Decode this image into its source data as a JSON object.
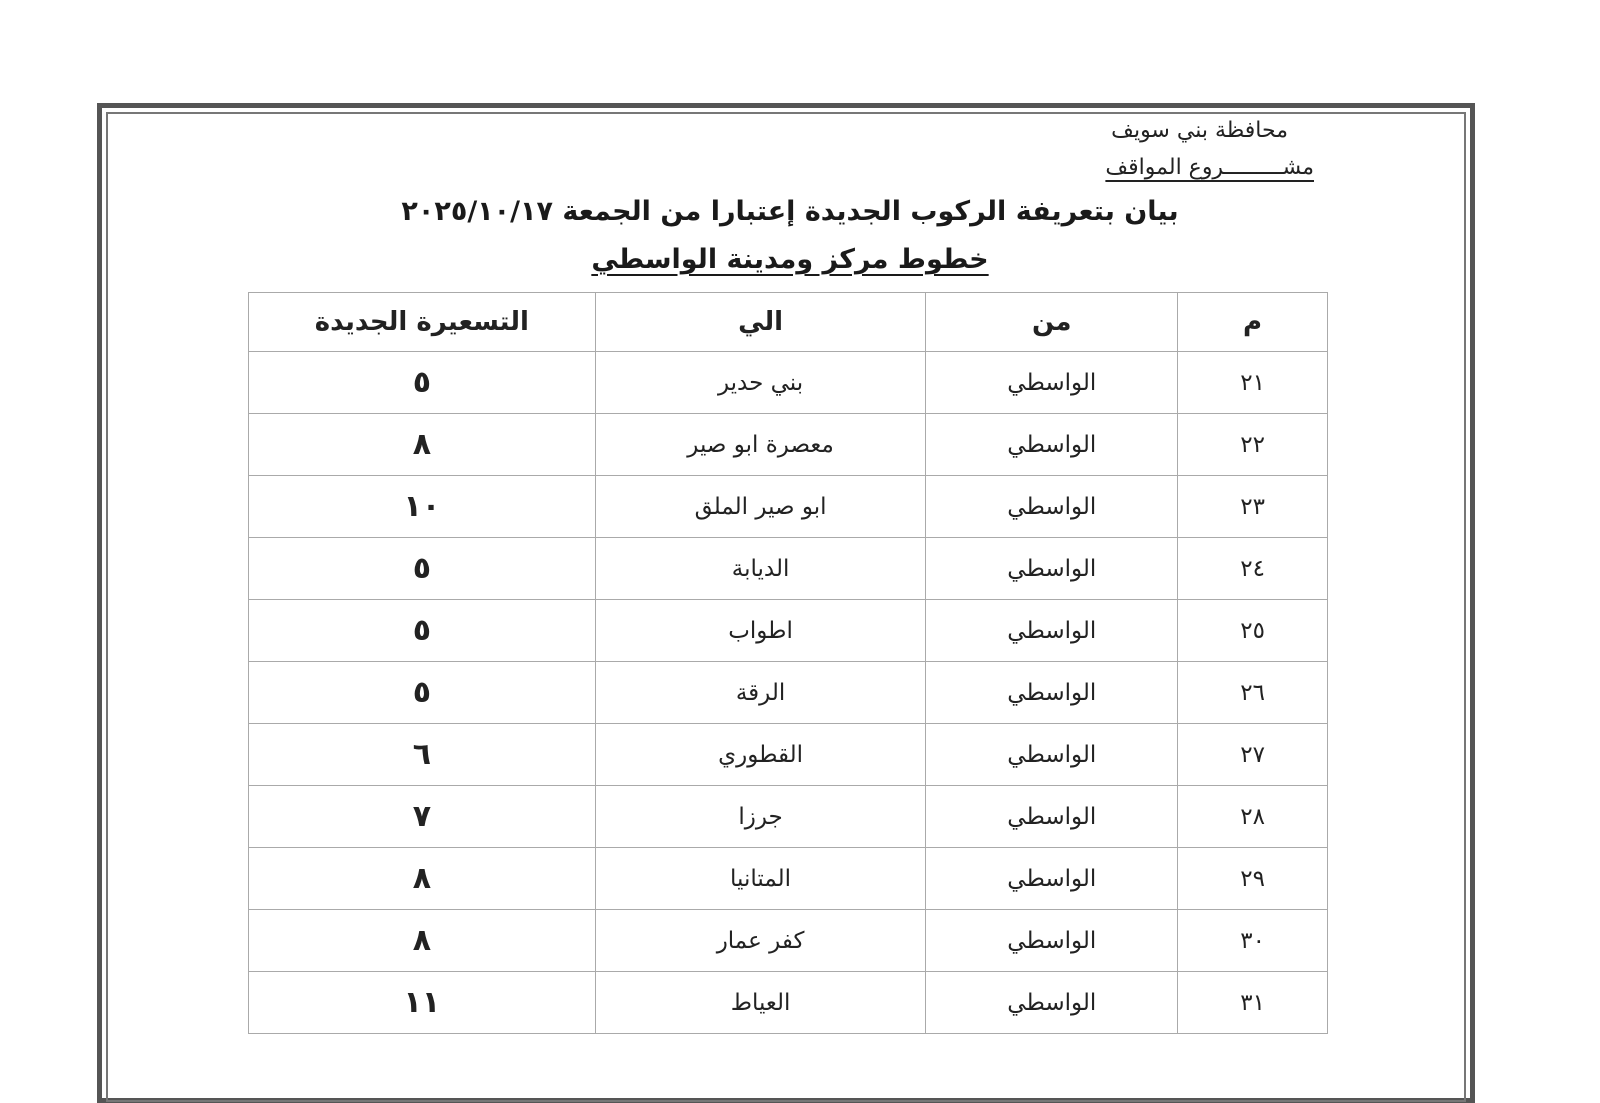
{
  "document": {
    "governorate": "محافظة بني سويف",
    "project": "مشـــــــــروع المواقف",
    "title": "بيان بتعريفة الركوب الجديدة إعتبارا من الجمعة ٢٠٢٥/١٠/١٧",
    "subtitle": "خطوط مركز ومدينة الواسطي"
  },
  "table": {
    "headers": [
      "م",
      "من",
      "الي",
      "التسعيرة الجديدة"
    ],
    "rows": [
      {
        "num": "٢١",
        "from": "الواسطي",
        "to": "بني حدير",
        "fare": "٥"
      },
      {
        "num": "٢٢",
        "from": "الواسطي",
        "to": "معصرة ابو صير",
        "fare": "٨"
      },
      {
        "num": "٢٣",
        "from": "الواسطي",
        "to": "ابو صير الملق",
        "fare": "١٠"
      },
      {
        "num": "٢٤",
        "from": "الواسطي",
        "to": "الديابة",
        "fare": "٥"
      },
      {
        "num": "٢٥",
        "from": "الواسطي",
        "to": "اطواب",
        "fare": "٥"
      },
      {
        "num": "٢٦",
        "from": "الواسطي",
        "to": "الرقة",
        "fare": "٥"
      },
      {
        "num": "٢٧",
        "from": "الواسطي",
        "to": "القطوري",
        "fare": "٦"
      },
      {
        "num": "٢٨",
        "from": "الواسطي",
        "to": "جرزا",
        "fare": "٧"
      },
      {
        "num": "٢٩",
        "from": "الواسطي",
        "to": "المتانيا",
        "fare": "٨"
      },
      {
        "num": "٣٠",
        "from": "الواسطي",
        "to": "كفر عمار",
        "fare": "٨"
      },
      {
        "num": "٣١",
        "from": "الواسطي",
        "to": "العياط",
        "fare": "١١"
      }
    ]
  }
}
